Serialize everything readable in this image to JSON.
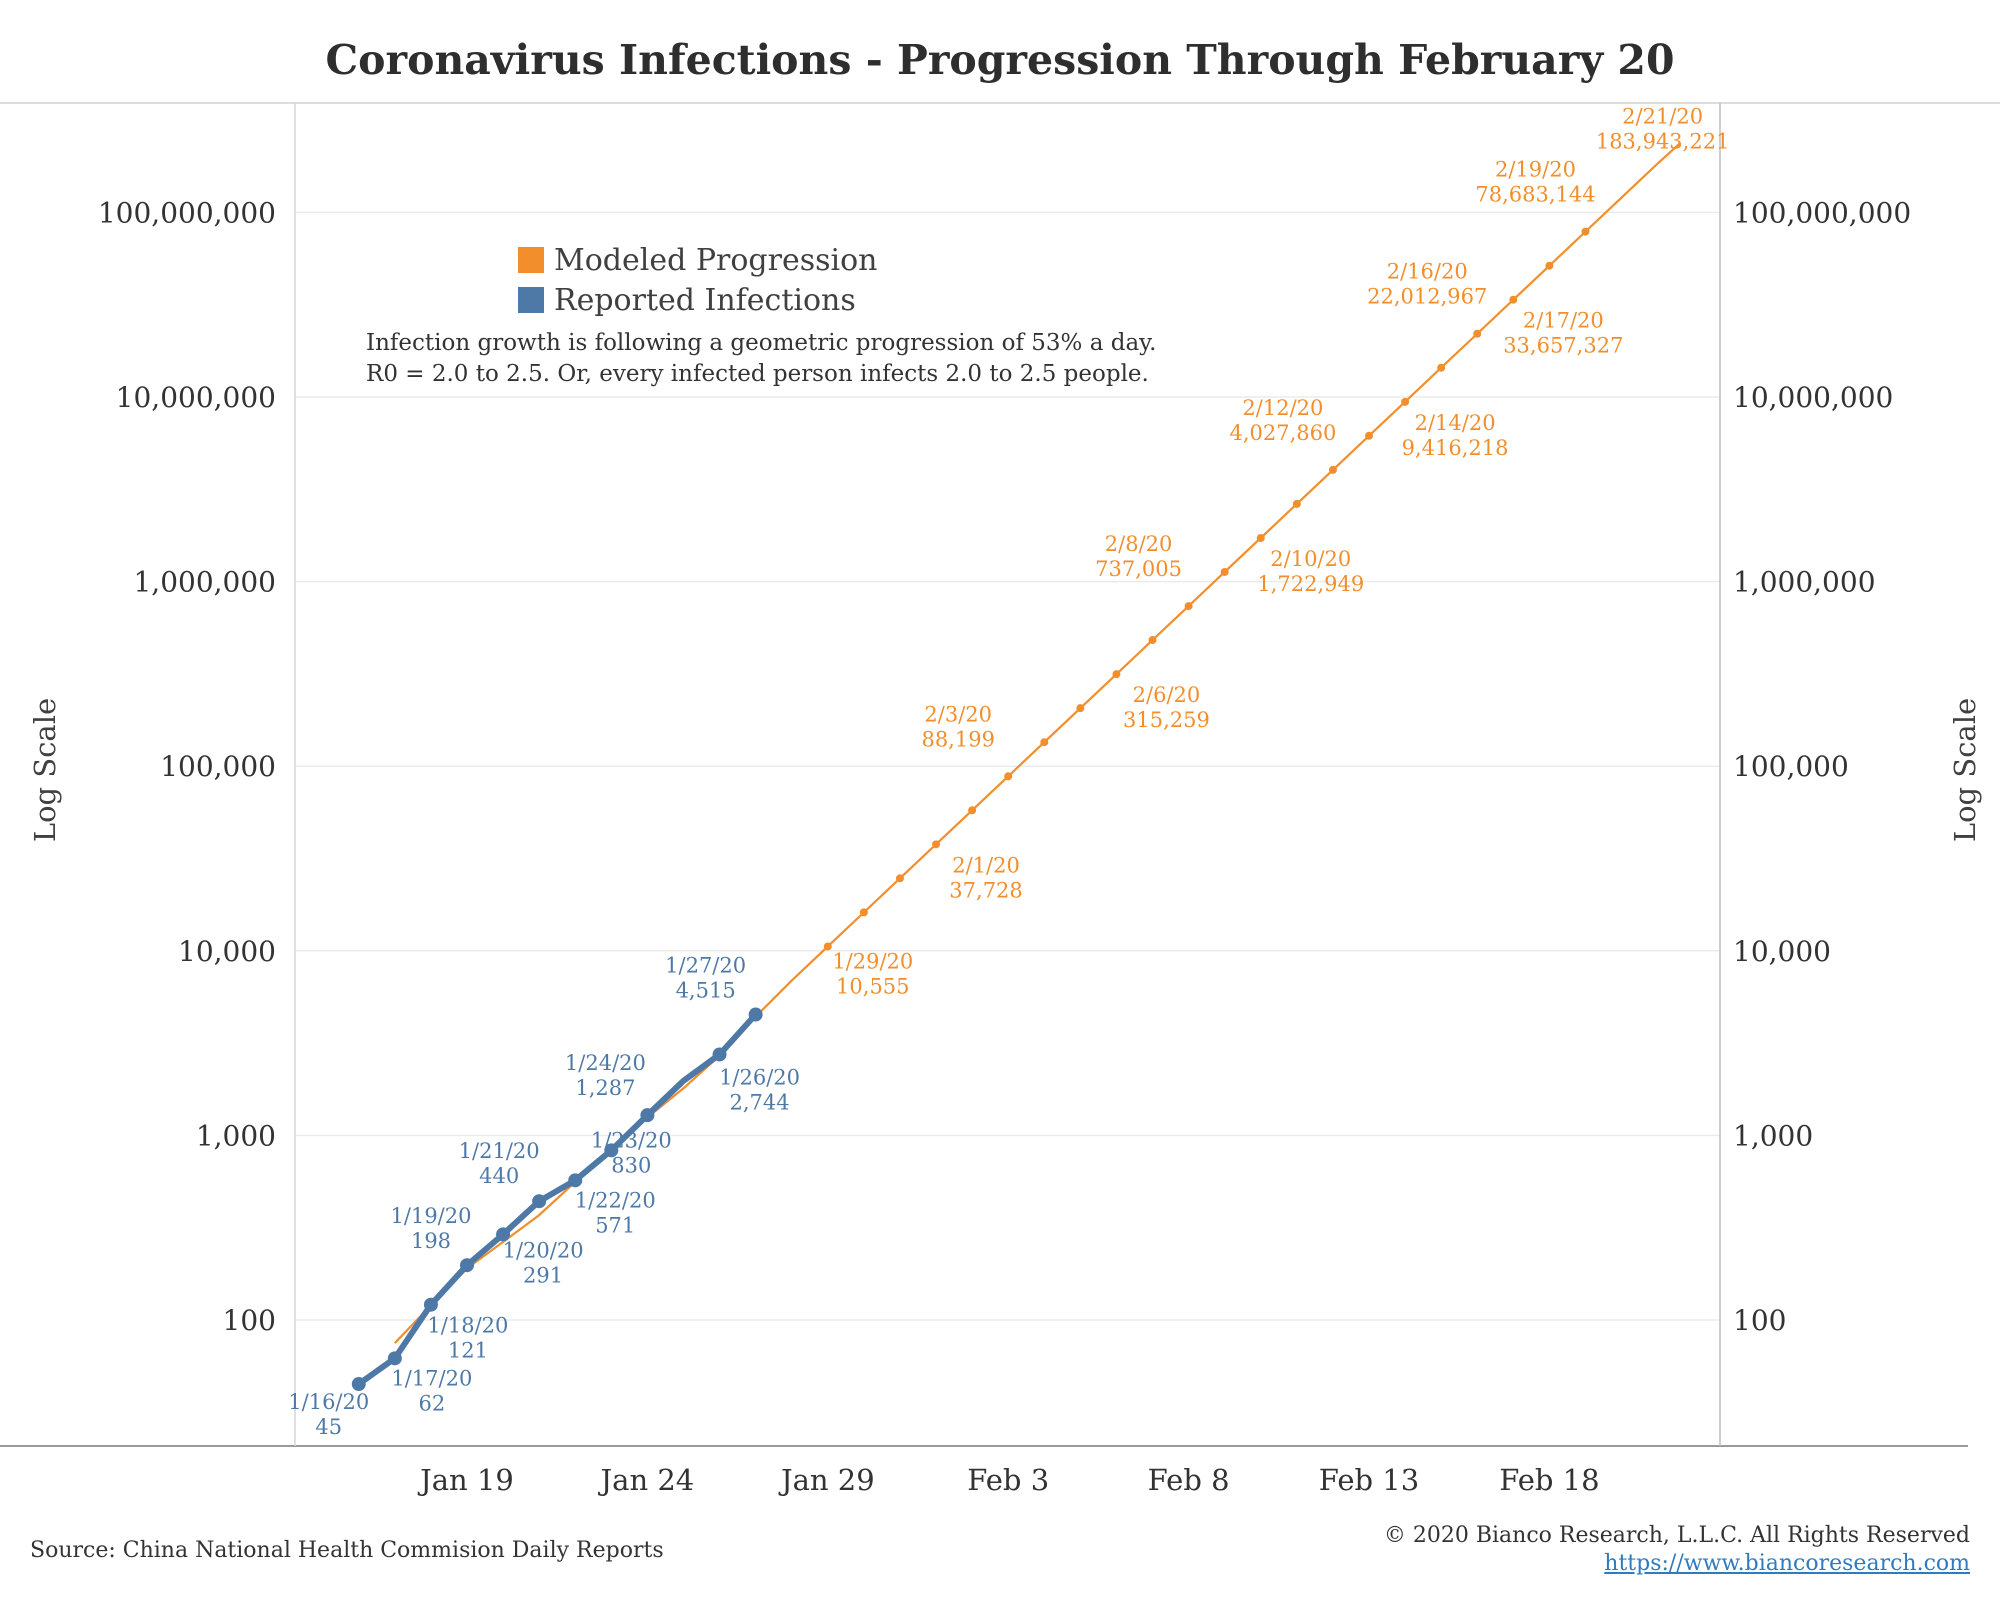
{
  "title": "Coronavirus Infections - Progression Through February 20",
  "source": "Source: China National Health Commision Daily Reports",
  "copyright": "© 2020 Bianco Research, L.L.C. All Rights Reserved",
  "url": "https://www.biancoresearch.com",
  "annotation": {
    "line1": "Infection growth is following a geometric progression of 53% a day.",
    "line2": "R0 = 2.0 to 2.5. Or, every infected person infects 2.0 to 2.5 people."
  },
  "colors": {
    "modeled": "#f28e2b",
    "reported": "#4e79a7",
    "text": "#333333",
    "grid": "#ebebeb"
  },
  "chart_data": {
    "type": "line",
    "title": "Coronavirus Infections - Progression Through February 20",
    "ylabel": "Log Scale",
    "yscale": "log",
    "ylim": [
      25,
      300000000
    ],
    "xlim": [
      "2020-01-13",
      "2020-02-22"
    ],
    "grid": true,
    "legend_position": "top-left",
    "y_ticks": [
      100,
      1000,
      10000,
      100000,
      1000000,
      10000000,
      100000000
    ],
    "y_tick_labels": [
      "100",
      "1,000",
      "10,000",
      "100,000",
      "1,000,000",
      "10,000,000",
      "100,000,000"
    ],
    "x_ticks": [
      "2020-01-19",
      "2020-01-24",
      "2020-01-29",
      "2020-02-03",
      "2020-02-08",
      "2020-02-13",
      "2020-02-18"
    ],
    "x_tick_labels": [
      "Jan 19",
      "Jan 24",
      "Jan 29",
      "Feb 3",
      "Feb 8",
      "Feb 13",
      "Feb 18"
    ],
    "series": [
      {
        "name": "Modeled Progression",
        "color": "#f28e2b",
        "x": [
          "2020-01-17",
          "2020-01-18",
          "2020-01-19",
          "2020-01-20",
          "2020-01-21",
          "2020-01-22",
          "2020-01-23",
          "2020-01-24",
          "2020-01-25",
          "2020-01-26",
          "2020-01-27",
          "2020-01-28",
          "2020-01-29",
          "2020-01-30",
          "2020-01-31",
          "2020-02-01",
          "2020-02-02",
          "2020-02-03",
          "2020-02-04",
          "2020-02-05",
          "2020-02-06",
          "2020-02-07",
          "2020-02-08",
          "2020-02-09",
          "2020-02-10",
          "2020-02-11",
          "2020-02-12",
          "2020-02-13",
          "2020-02-14",
          "2020-02-15",
          "2020-02-16",
          "2020-02-17",
          "2020-02-18",
          "2020-02-19",
          "2020-02-20",
          "2020-02-21"
        ],
        "values": [
          75,
          120,
          190,
          265,
          370,
          560,
          820,
          1250,
          1800,
          2700,
          4400,
          6900,
          10555,
          16150,
          24700,
          37728,
          57700,
          88199,
          134900,
          206300,
          315259,
          482400,
          737005,
          1127600,
          1722949,
          2636000,
          4027860,
          6163000,
          9416218,
          14406000,
          22012967,
          33657327,
          51440000,
          78683144,
          120350000,
          183943221
        ],
        "labels": [
          {
            "x": "2020-01-29",
            "date": "1/29/20",
            "value": "10,555",
            "pos": "below"
          },
          {
            "x": "2020-02-01",
            "date": "2/1/20",
            "value": "37,728",
            "pos": "below"
          },
          {
            "x": "2020-02-03",
            "date": "2/3/20",
            "value": "88,199",
            "pos": "above"
          },
          {
            "x": "2020-02-06",
            "date": "2/6/20",
            "value": "315,259",
            "pos": "below"
          },
          {
            "x": "2020-02-08",
            "date": "2/8/20",
            "value": "737,005",
            "pos": "above"
          },
          {
            "x": "2020-02-10",
            "date": "2/10/20",
            "value": "1,722,949",
            "pos": "below"
          },
          {
            "x": "2020-02-12",
            "date": "2/12/20",
            "value": "4,027,860",
            "pos": "above"
          },
          {
            "x": "2020-02-14",
            "date": "2/14/20",
            "value": "9,416,218",
            "pos": "below"
          },
          {
            "x": "2020-02-16",
            "date": "2/16/20",
            "value": "22,012,967",
            "pos": "above"
          },
          {
            "x": "2020-02-17",
            "date": "2/17/20",
            "value": "33,657,327",
            "pos": "below"
          },
          {
            "x": "2020-02-19",
            "date": "2/19/20",
            "value": "78,683,144",
            "pos": "above"
          },
          {
            "x": "2020-02-21",
            "date": "2/21/20",
            "value": "183,943,221",
            "pos": "above"
          }
        ]
      },
      {
        "name": "Reported Infections",
        "color": "#4e79a7",
        "x": [
          "2020-01-16",
          "2020-01-17",
          "2020-01-18",
          "2020-01-19",
          "2020-01-20",
          "2020-01-21",
          "2020-01-22",
          "2020-01-23",
          "2020-01-24",
          "2020-01-25",
          "2020-01-26",
          "2020-01-27"
        ],
        "values": [
          45,
          62,
          121,
          198,
          291,
          440,
          571,
          830,
          1287,
          1975,
          2744,
          4515
        ],
        "labels": [
          {
            "x": "2020-01-16",
            "date": "1/16/20",
            "value": "45",
            "pos": "below-left"
          },
          {
            "x": "2020-01-17",
            "date": "1/17/20",
            "value": "62",
            "pos": "below"
          },
          {
            "x": "2020-01-18",
            "date": "1/18/20",
            "value": "121",
            "pos": "below"
          },
          {
            "x": "2020-01-19",
            "date": "1/19/20",
            "value": "198",
            "pos": "above-left"
          },
          {
            "x": "2020-01-20",
            "date": "1/20/20",
            "value": "291",
            "pos": "below"
          },
          {
            "x": "2020-01-21",
            "date": "1/21/20",
            "value": "440",
            "pos": "above-left"
          },
          {
            "x": "2020-01-22",
            "date": "1/22/20",
            "value": "571",
            "pos": "below"
          },
          {
            "x": "2020-01-23",
            "date": "1/23/20",
            "value": "830",
            "pos": "below"
          },
          {
            "x": "2020-01-24",
            "date": "1/24/20",
            "value": "1,287",
            "pos": "above-left"
          },
          {
            "x": "2020-01-26",
            "date": "1/26/20",
            "value": "2,744",
            "pos": "below"
          },
          {
            "x": "2020-01-27",
            "date": "1/27/20",
            "value": "4,515",
            "pos": "above-left"
          }
        ]
      }
    ]
  }
}
